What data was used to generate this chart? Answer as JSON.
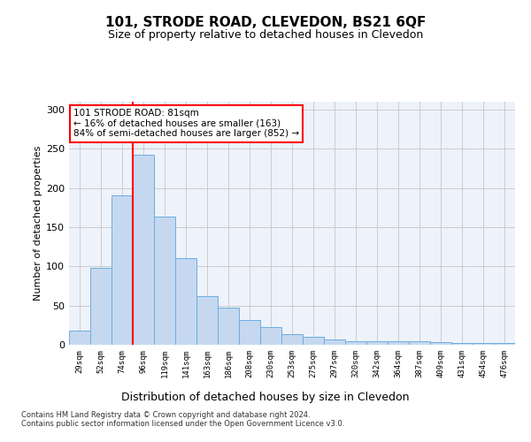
{
  "title": "101, STRODE ROAD, CLEVEDON, BS21 6QF",
  "subtitle": "Size of property relative to detached houses in Clevedon",
  "xlabel": "Distribution of detached houses by size in Clevedon",
  "ylabel": "Number of detached properties",
  "categories": [
    "29sqm",
    "52sqm",
    "74sqm",
    "96sqm",
    "119sqm",
    "141sqm",
    "163sqm",
    "186sqm",
    "208sqm",
    "230sqm",
    "253sqm",
    "275sqm",
    "297sqm",
    "320sqm",
    "342sqm",
    "364sqm",
    "387sqm",
    "409sqm",
    "431sqm",
    "454sqm",
    "476sqm"
  ],
  "values": [
    18,
    98,
    190,
    242,
    163,
    110,
    62,
    47,
    32,
    23,
    13,
    10,
    7,
    4,
    4,
    4,
    4,
    3,
    2,
    2,
    2
  ],
  "bar_color": "#c5d8f0",
  "bar_edge_color": "#6aaee0",
  "red_line_x": 2.5,
  "annotation_text": "101 STRODE ROAD: 81sqm\n← 16% of detached houses are smaller (163)\n84% of semi-detached houses are larger (852) →",
  "annotation_box_color": "white",
  "annotation_box_edge": "red",
  "ylim": [
    0,
    310
  ],
  "yticks": [
    0,
    50,
    100,
    150,
    200,
    250,
    300
  ],
  "grid_color": "#cccccc",
  "background_color": "#eef2fb",
  "footer_line1": "Contains HM Land Registry data © Crown copyright and database right 2024.",
  "footer_line2": "Contains public sector information licensed under the Open Government Licence v3.0."
}
